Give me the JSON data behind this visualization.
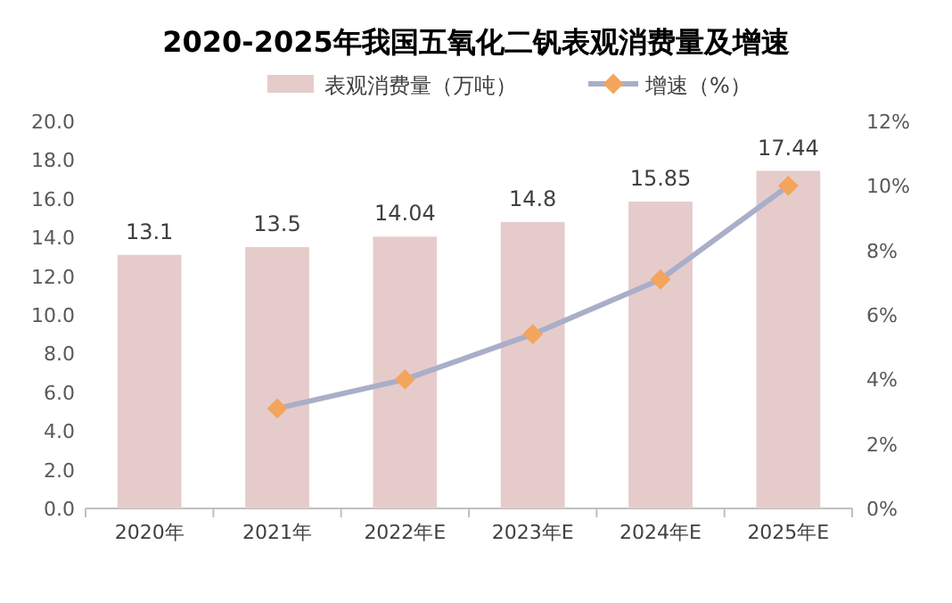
{
  "chart_data": {
    "type": "bar",
    "title": "2020-2025年我国五氧化二钒表观消费量及增速",
    "categories": [
      "2020年",
      "2021年",
      "2022年E",
      "2023年E",
      "2024年E",
      "2025年E"
    ],
    "series": [
      {
        "name": "表观消费量（万吨）",
        "color": "#e6cbcb",
        "values": [
          13.1,
          13.5,
          14.04,
          14.8,
          15.85,
          17.44
        ],
        "value_labels": [
          "13.1",
          "13.5",
          "14.04",
          "14.8",
          "15.85",
          "17.44"
        ]
      },
      {
        "name": "增速（%）",
        "type": "line",
        "axis": "y2",
        "color": "#a9aec9",
        "marker": "diamond",
        "values": [
          null,
          3.1,
          4.0,
          5.4,
          7.1,
          10.0
        ]
      }
    ],
    "ylim": [
      0,
      20
    ],
    "yticks": [
      {
        "value": 0,
        "label": "0.0"
      },
      {
        "value": 2,
        "label": "2.0"
      },
      {
        "value": 4,
        "label": "4.0"
      },
      {
        "value": 6,
        "label": "6.0"
      },
      {
        "value": 8,
        "label": "8.0"
      },
      {
        "value": 10,
        "label": "10.0"
      },
      {
        "value": 12,
        "label": "12.0"
      },
      {
        "value": 14,
        "label": "14.0"
      },
      {
        "value": 16,
        "label": "16.0"
      },
      {
        "value": 18,
        "label": "18.0"
      },
      {
        "value": 20,
        "label": "20.0"
      }
    ],
    "y2lim": [
      0,
      12
    ],
    "y2ticks": [
      {
        "value": 0,
        "label": "0%"
      },
      {
        "value": 2,
        "label": "2%"
      },
      {
        "value": 4,
        "label": "4%"
      },
      {
        "value": 6,
        "label": "6%"
      },
      {
        "value": 8,
        "label": "8%"
      },
      {
        "value": 10,
        "label": "10%"
      },
      {
        "value": 12,
        "label": "12%"
      }
    ],
    "legend": "top"
  }
}
